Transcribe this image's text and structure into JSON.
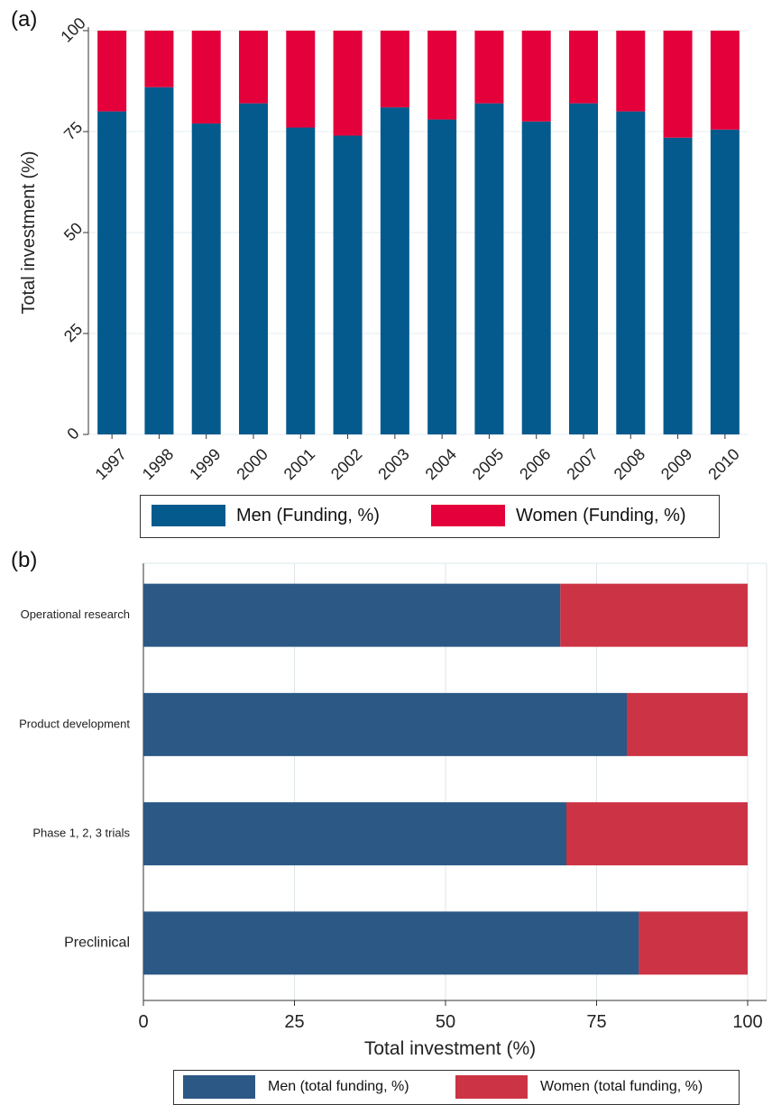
{
  "chart_data": [
    {
      "panel_label": "(a)",
      "type": "bar",
      "stacked": true,
      "orientation": "vertical",
      "categories": [
        "1997",
        "1998",
        "1999",
        "2000",
        "2001",
        "2002",
        "2003",
        "2004",
        "2005",
        "2006",
        "2007",
        "2008",
        "2009",
        "2010"
      ],
      "series": [
        {
          "name": "Men (Funding, %)",
          "color": "#045a8d",
          "values": [
            80,
            86,
            77,
            82,
            76,
            74,
            81,
            78,
            82,
            77.5,
            82,
            80,
            73.5,
            75.5
          ]
        },
        {
          "name": "Women (Funding, %)",
          "color": "#e4003a",
          "values": [
            20,
            14,
            23,
            18,
            24,
            26,
            19,
            22,
            18,
            22.5,
            18,
            20,
            26.5,
            24.5
          ]
        }
      ],
      "ylabel": "Total investment (%)",
      "xlabel": "",
      "ylim": [
        0,
        100
      ],
      "yticks": [
        "0",
        "25",
        "50",
        "75",
        "100"
      ],
      "grid": true,
      "legend_position": "bottom"
    },
    {
      "panel_label": "(b)",
      "type": "bar",
      "stacked": true,
      "orientation": "horizontal",
      "categories": [
        "Operational research",
        "Product development",
        "Phase 1, 2, 3 trials",
        "Preclinical"
      ],
      "series": [
        {
          "name": "Men (total funding, %)",
          "color": "#2b5885",
          "values": [
            69,
            80,
            70,
            82
          ]
        },
        {
          "name": "Women (total funding, %)",
          "color": "#cc3344",
          "values": [
            31,
            20,
            30,
            18
          ]
        }
      ],
      "xlabel": "Total investment (%)",
      "ylabel": "",
      "xlim": [
        0,
        100
      ],
      "xticks": [
        "0",
        "25",
        "50",
        "75",
        "100"
      ],
      "grid": true,
      "legend_position": "bottom"
    }
  ]
}
